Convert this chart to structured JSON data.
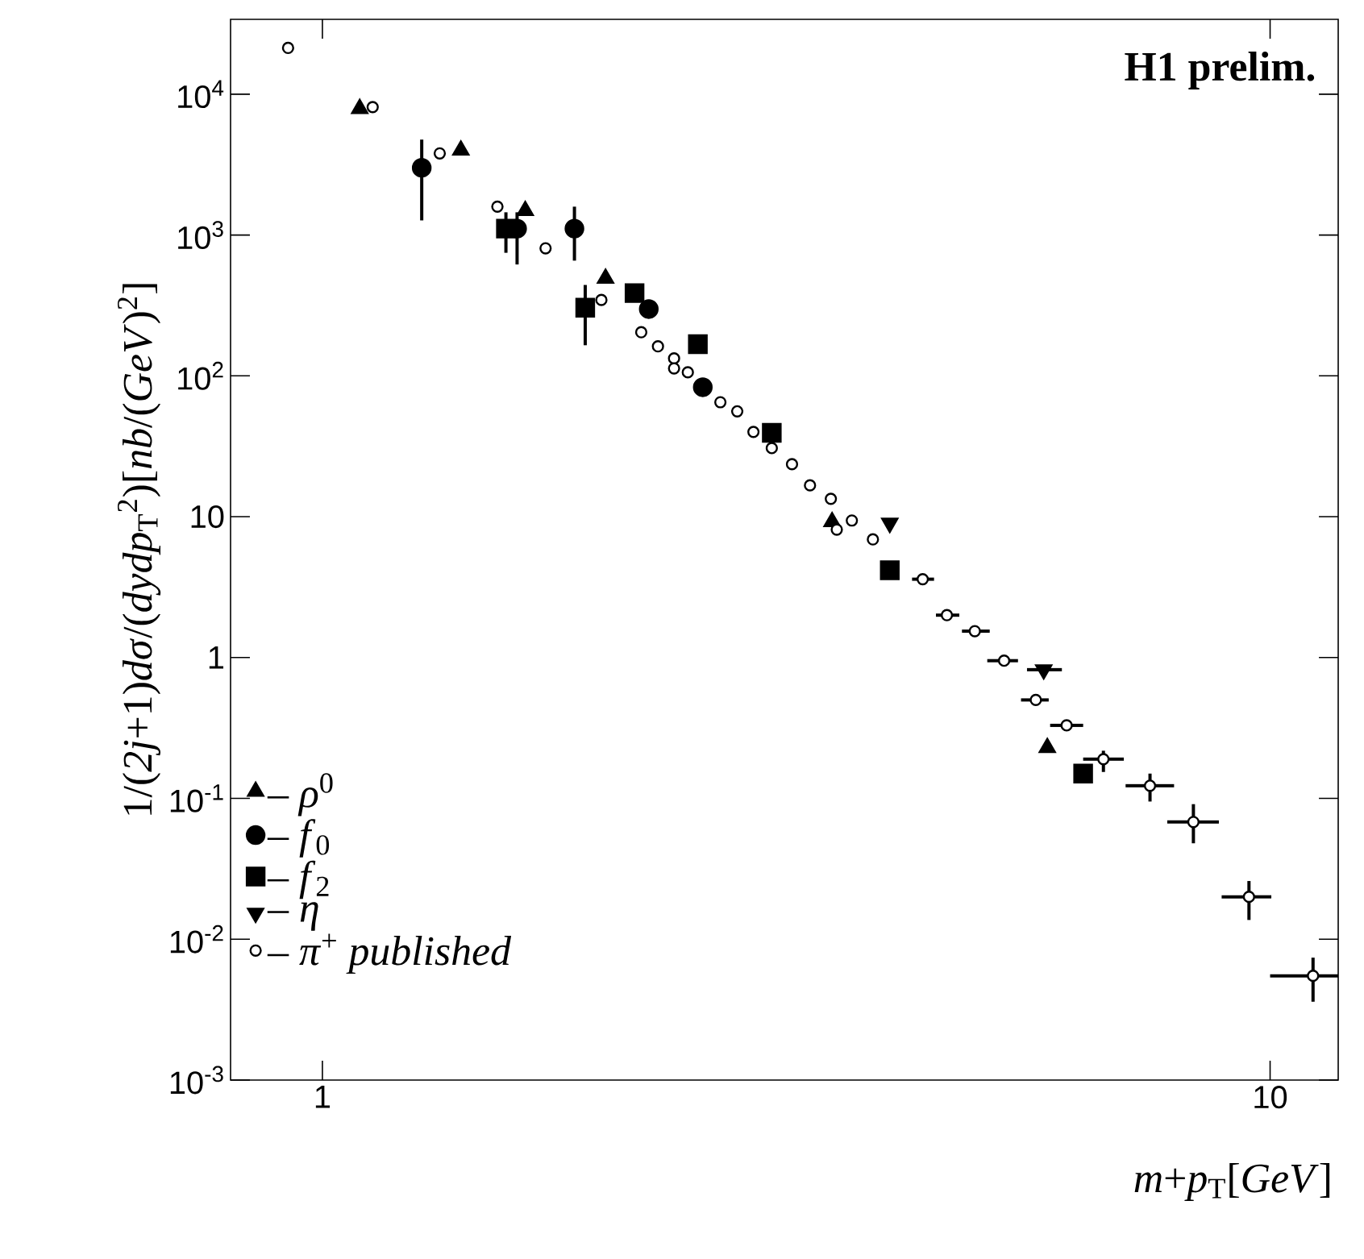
{
  "chart_data": {
    "type": "scatter",
    "title": "H1 prelim.",
    "xlabel": "*m*+*p*$_{T}$[*GeV*]",
    "ylabel": "1/(*2j*+1)*dσ*/(*dydp*$_{T}$$^{2}$)[*nb*/(*GeV*)$^{2}$]",
    "log": "xy",
    "legend": "bottom left",
    "xlim": [
      0.8,
      11.8
    ],
    "ylim": [
      0.001,
      34000
    ],
    "xticks": [
      1,
      10
    ],
    "yticks": [
      {
        "value": 0.001,
        "label": "10$^{-3}$"
      },
      {
        "value": 0.01,
        "label": "10$^{-2}$"
      },
      {
        "value": 0.1,
        "label": "10$^{-1}$"
      },
      1,
      10,
      {
        "value": 100,
        "label": "10$^{2}$"
      },
      {
        "value": 1000,
        "label": "10$^{3}$"
      },
      {
        "value": 10000,
        "label": "10$^{4}$"
      }
    ],
    "series": [
      {
        "name": "– *ρ*$^{0}$",
        "color": "#000000",
        "marker": "triangle",
        "x": [
          1.095,
          1.4,
          1.637,
          1.99,
          3.45,
          5.82
        ],
        "values": [
          7900,
          4000,
          1490,
          492,
          9.2,
          0.229
        ]
      },
      {
        "name": "– *f*$_{0}$",
        "color": "#000000",
        "marker": "circle",
        "x": [
          1.273,
          1.605,
          1.845,
          2.21,
          2.52
        ],
        "values": [
          3000,
          1110,
          1110,
          298,
          83
        ],
        "errors": [
          [
            1270,
            4760
          ],
          [
            618,
            1450
          ],
          [
            658,
            1590
          ],
          null,
          null
        ]
      },
      {
        "name": "– *f*$_{2}$",
        "color": "#000000",
        "marker": "square",
        "x": [
          1.562,
          1.894,
          2.135,
          2.49,
          2.98,
          3.97,
          6.35
        ],
        "values": [
          1110,
          305,
          387,
          168,
          39.4,
          4.17,
          0.15
        ],
        "errors": [
          [
            748,
            1450
          ],
          [
            165,
            442
          ],
          null,
          null,
          null,
          null,
          null
        ]
      },
      {
        "name": "– *η*",
        "color": "#000000",
        "marker": "triangle down",
        "x": [
          3.97,
          5.77
        ],
        "values": [
          9.0,
          0.82
        ],
        "xerrors": [
          null,
          [
            5.54,
            6.03
          ]
        ]
      },
      {
        "name": "– *π*$^{+}$ *published*",
        "color": "#ffffff",
        "marker": "circle",
        "x": [
          0.92,
          1.13,
          1.33,
          1.53,
          1.72,
          1.97,
          2.17,
          2.26,
          2.35,
          2.35,
          2.43,
          2.63,
          2.74,
          2.85,
          2.98,
          3.13,
          3.27,
          3.44,
          3.49,
          3.62,
          3.81,
          4.3,
          4.56,
          4.88,
          5.24,
          5.66,
          6.1,
          6.67,
          7.47,
          8.3,
          9.5,
          11.1
        ],
        "values": [
          21300,
          8100,
          3800,
          1590,
          805,
          346,
          204,
          162,
          133,
          113,
          106,
          65,
          56,
          40,
          30.7,
          23.6,
          16.7,
          13.4,
          8.1,
          9.4,
          6.9,
          3.6,
          2.0,
          1.54,
          0.95,
          0.5,
          0.33,
          0.19,
          0.123,
          0.068,
          0.02,
          0.0055
        ],
        "xerrors": [
          null,
          null,
          null,
          null,
          null,
          null,
          null,
          null,
          null,
          null,
          null,
          null,
          null,
          null,
          null,
          null,
          null,
          null,
          null,
          null,
          null,
          [
            4.19,
            4.42
          ],
          [
            4.44,
            4.7
          ],
          [
            4.73,
            5.06
          ],
          [
            5.03,
            5.42
          ],
          [
            5.46,
            5.84
          ],
          [
            5.86,
            6.35
          ],
          [
            6.35,
            7.01
          ],
          [
            7.04,
            7.92
          ],
          [
            7.79,
            8.83
          ],
          [
            8.89,
            10.03
          ],
          [
            10.0,
            11.8
          ]
        ],
        "errors": [
          null,
          null,
          null,
          null,
          null,
          null,
          null,
          null,
          null,
          null,
          null,
          null,
          null,
          null,
          null,
          null,
          null,
          null,
          null,
          null,
          null,
          null,
          null,
          null,
          null,
          null,
          null,
          [
            0.154,
            0.218
          ],
          [
            0.095,
            0.15
          ],
          [
            0.048,
            0.091
          ],
          [
            0.0137,
            0.0259
          ],
          [
            0.0036,
            0.0074
          ]
        ]
      }
    ]
  }
}
